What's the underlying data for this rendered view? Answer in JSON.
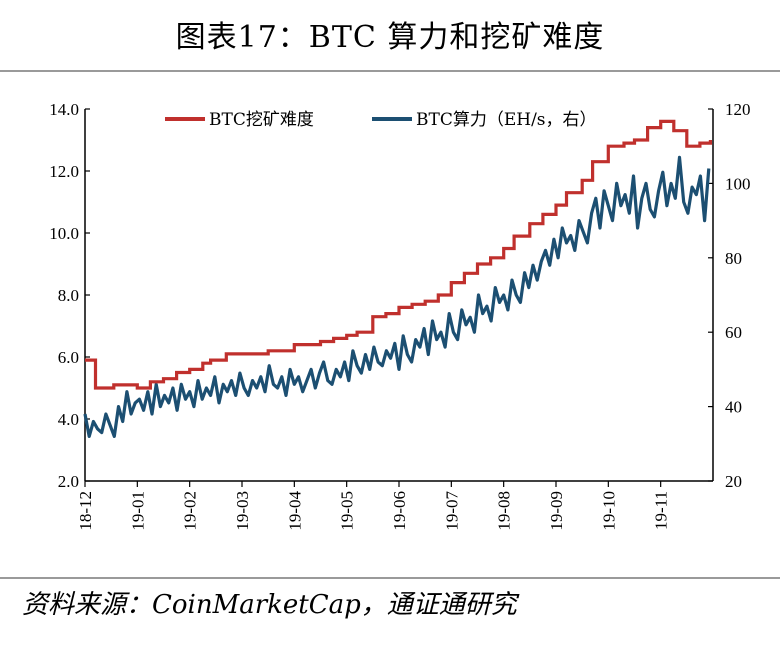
{
  "title": "图表17：BTC 算力和挖矿难度",
  "source": "资料来源：CoinMarketCap，通证通研究",
  "colors": {
    "difficulty": "#c0302d",
    "hashrate": "#1c4f72",
    "axis": "#000000",
    "rule": "#9a9a9a"
  },
  "chart_data": {
    "type": "line",
    "title": "",
    "xlabel": "",
    "ylabel": "",
    "ylabel_right": "",
    "x_ticks": [
      "18-12",
      "19-01",
      "19-02",
      "19-03",
      "19-04",
      "19-05",
      "19-06",
      "19-07",
      "19-08",
      "19-09",
      "19-10",
      "19-11"
    ],
    "y_left": {
      "range": [
        2.0,
        14.0
      ],
      "ticks": [
        "14.0",
        "12.0",
        "10.0",
        "8.0",
        "6.0",
        "4.0",
        "2.0"
      ]
    },
    "y_right": {
      "range": [
        20,
        120
      ],
      "ticks": [
        "120",
        "100",
        "80",
        "60",
        "40",
        "20"
      ]
    },
    "grid": false,
    "legend": "top",
    "series": [
      {
        "name": "BTC挖矿难度",
        "axis": "left",
        "color": "#c0302d",
        "step": true,
        "x": [
          0,
          0.08,
          0.2,
          0.4,
          0.55,
          0.8,
          1.0,
          1.25,
          1.5,
          1.75,
          2.0,
          2.25,
          2.4,
          2.7,
          3.0,
          3.25,
          3.5,
          3.75,
          4.0,
          4.2,
          4.5,
          4.75,
          5.0,
          5.2,
          5.5,
          5.75,
          6.0,
          6.25,
          6.5,
          6.75,
          7.0,
          7.25,
          7.5,
          7.75,
          8.0,
          8.2,
          8.5,
          8.75,
          9.0,
          9.2,
          9.5,
          9.7,
          10.0,
          10.3,
          10.5,
          10.75,
          11.0,
          11.25,
          11.5,
          11.75,
          11.95
        ],
        "values": [
          5.9,
          5.9,
          5.0,
          5.0,
          5.1,
          5.1,
          5.0,
          5.2,
          5.3,
          5.5,
          5.6,
          5.8,
          5.9,
          6.1,
          6.1,
          6.1,
          6.2,
          6.2,
          6.4,
          6.4,
          6.5,
          6.6,
          6.7,
          6.8,
          7.3,
          7.4,
          7.6,
          7.7,
          7.8,
          8.0,
          8.4,
          8.7,
          9.0,
          9.2,
          9.5,
          9.9,
          10.3,
          10.6,
          10.9,
          11.3,
          11.7,
          12.3,
          12.8,
          12.9,
          13.0,
          13.4,
          13.6,
          13.3,
          12.8,
          12.9,
          13.0
        ]
      },
      {
        "name": "BTC算力（EH/s，右）",
        "axis": "right",
        "color": "#1c4f72",
        "x": [
          0,
          0.08,
          0.16,
          0.24,
          0.32,
          0.4,
          0.48,
          0.56,
          0.64,
          0.72,
          0.8,
          0.88,
          0.96,
          1.04,
          1.12,
          1.2,
          1.28,
          1.36,
          1.44,
          1.52,
          1.6,
          1.68,
          1.76,
          1.84,
          1.92,
          2.0,
          2.08,
          2.16,
          2.24,
          2.32,
          2.4,
          2.48,
          2.56,
          2.64,
          2.72,
          2.8,
          2.88,
          2.96,
          3.04,
          3.12,
          3.2,
          3.28,
          3.36,
          3.44,
          3.52,
          3.6,
          3.68,
          3.76,
          3.84,
          3.92,
          4.0,
          4.08,
          4.16,
          4.24,
          4.32,
          4.4,
          4.48,
          4.56,
          4.64,
          4.72,
          4.8,
          4.88,
          4.96,
          5.04,
          5.12,
          5.2,
          5.28,
          5.36,
          5.44,
          5.52,
          5.6,
          5.68,
          5.76,
          5.84,
          5.92,
          6.0,
          6.08,
          6.16,
          6.24,
          6.32,
          6.4,
          6.48,
          6.56,
          6.64,
          6.72,
          6.8,
          6.88,
          6.96,
          7.04,
          7.12,
          7.2,
          7.28,
          7.36,
          7.44,
          7.52,
          7.6,
          7.68,
          7.76,
          7.84,
          7.92,
          8.0,
          8.08,
          8.16,
          8.24,
          8.32,
          8.4,
          8.48,
          8.56,
          8.64,
          8.72,
          8.8,
          8.88,
          8.96,
          9.04,
          9.12,
          9.2,
          9.28,
          9.36,
          9.44,
          9.52,
          9.6,
          9.68,
          9.76,
          9.84,
          9.92,
          10.0,
          10.08,
          10.16,
          10.24,
          10.32,
          10.4,
          10.48,
          10.56,
          10.64,
          10.72,
          10.8,
          10.88,
          10.96,
          11.04,
          11.12,
          11.2,
          11.28,
          11.36,
          11.44,
          11.52,
          11.6,
          11.68,
          11.76,
          11.84,
          11.92
        ],
        "values": [
          38,
          32,
          36,
          34,
          33,
          38,
          35,
          32,
          40,
          36,
          44,
          38,
          41,
          42,
          39,
          44,
          38,
          46,
          40,
          43,
          41,
          45,
          39,
          46,
          42,
          44,
          40,
          47,
          42,
          45,
          43,
          48,
          41,
          46,
          44,
          47,
          43,
          49,
          45,
          43,
          47,
          45,
          48,
          44,
          51,
          46,
          45,
          48,
          43,
          50,
          46,
          48,
          44,
          47,
          50,
          45,
          49,
          52,
          47,
          46,
          50,
          48,
          52,
          47,
          55,
          51,
          49,
          54,
          50,
          56,
          52,
          51,
          55,
          53,
          57,
          50,
          59,
          54,
          52,
          58,
          56,
          61,
          54,
          63,
          58,
          60,
          56,
          65,
          60,
          58,
          66,
          62,
          64,
          60,
          70,
          65,
          67,
          63,
          72,
          68,
          70,
          66,
          74,
          70,
          68,
          76,
          72,
          78,
          74,
          79,
          82,
          78,
          85,
          80,
          88,
          84,
          86,
          82,
          90,
          87,
          84,
          92,
          96,
          88,
          98,
          94,
          90,
          100,
          94,
          97,
          92,
          102,
          88,
          96,
          100,
          93,
          91,
          98,
          103,
          94,
          100,
          96,
          107,
          95,
          92,
          99,
          97,
          102,
          90,
          104
        ]
      }
    ]
  }
}
